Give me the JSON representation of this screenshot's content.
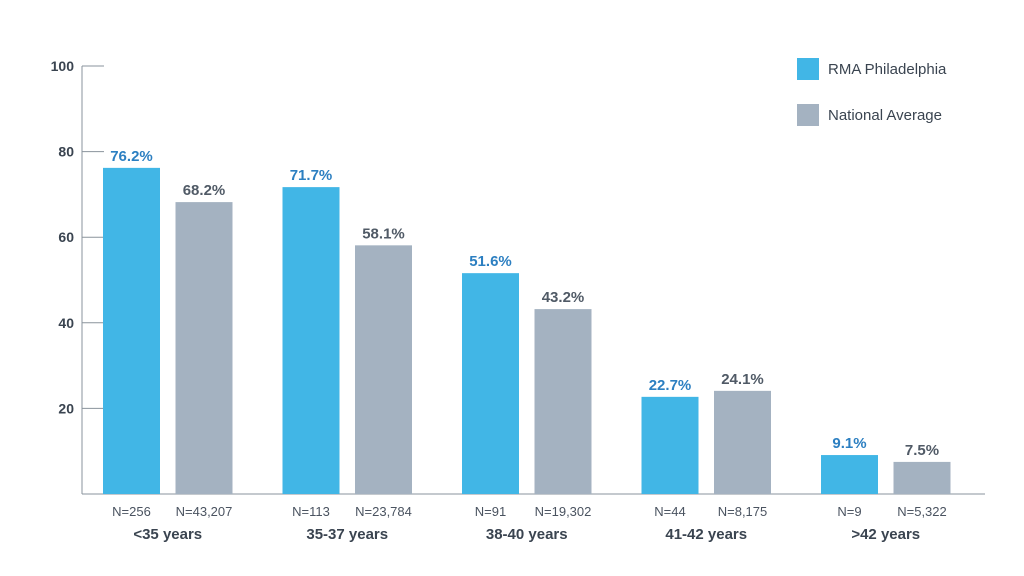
{
  "chart_data": {
    "type": "bar",
    "categories": [
      "<35 years",
      "35-37 years",
      "38-40 years",
      "41-42 years",
      ">42 years"
    ],
    "series": [
      {
        "name": "RMA Philadelphia",
        "color": "#41b6e6",
        "label_color": "#2c7fc1",
        "values": [
          76.2,
          71.7,
          51.6,
          22.7,
          9.1
        ],
        "labels": [
          "76.2%",
          "71.7%",
          "51.6%",
          "22.7%",
          "9.1%"
        ],
        "n_labels": [
          "N=256",
          "N=113",
          "N=91",
          "N=44",
          "N=9"
        ]
      },
      {
        "name": "National Average",
        "color": "#a4b2c1",
        "label_color": "#505a66",
        "values": [
          68.2,
          58.1,
          43.2,
          24.1,
          7.5
        ],
        "labels": [
          "68.2%",
          "58.1%",
          "43.2%",
          "24.1%",
          "7.5%"
        ],
        "n_labels": [
          "N=43,207",
          "N=23,784",
          "N=19,302",
          "N=8,175",
          "N=5,322"
        ]
      }
    ],
    "ylim": [
      0,
      100
    ],
    "yticks": [
      20,
      40,
      60,
      80,
      100
    ],
    "grid": false,
    "legend_position": "top-right",
    "title": "",
    "xlabel": "",
    "ylabel": ""
  }
}
